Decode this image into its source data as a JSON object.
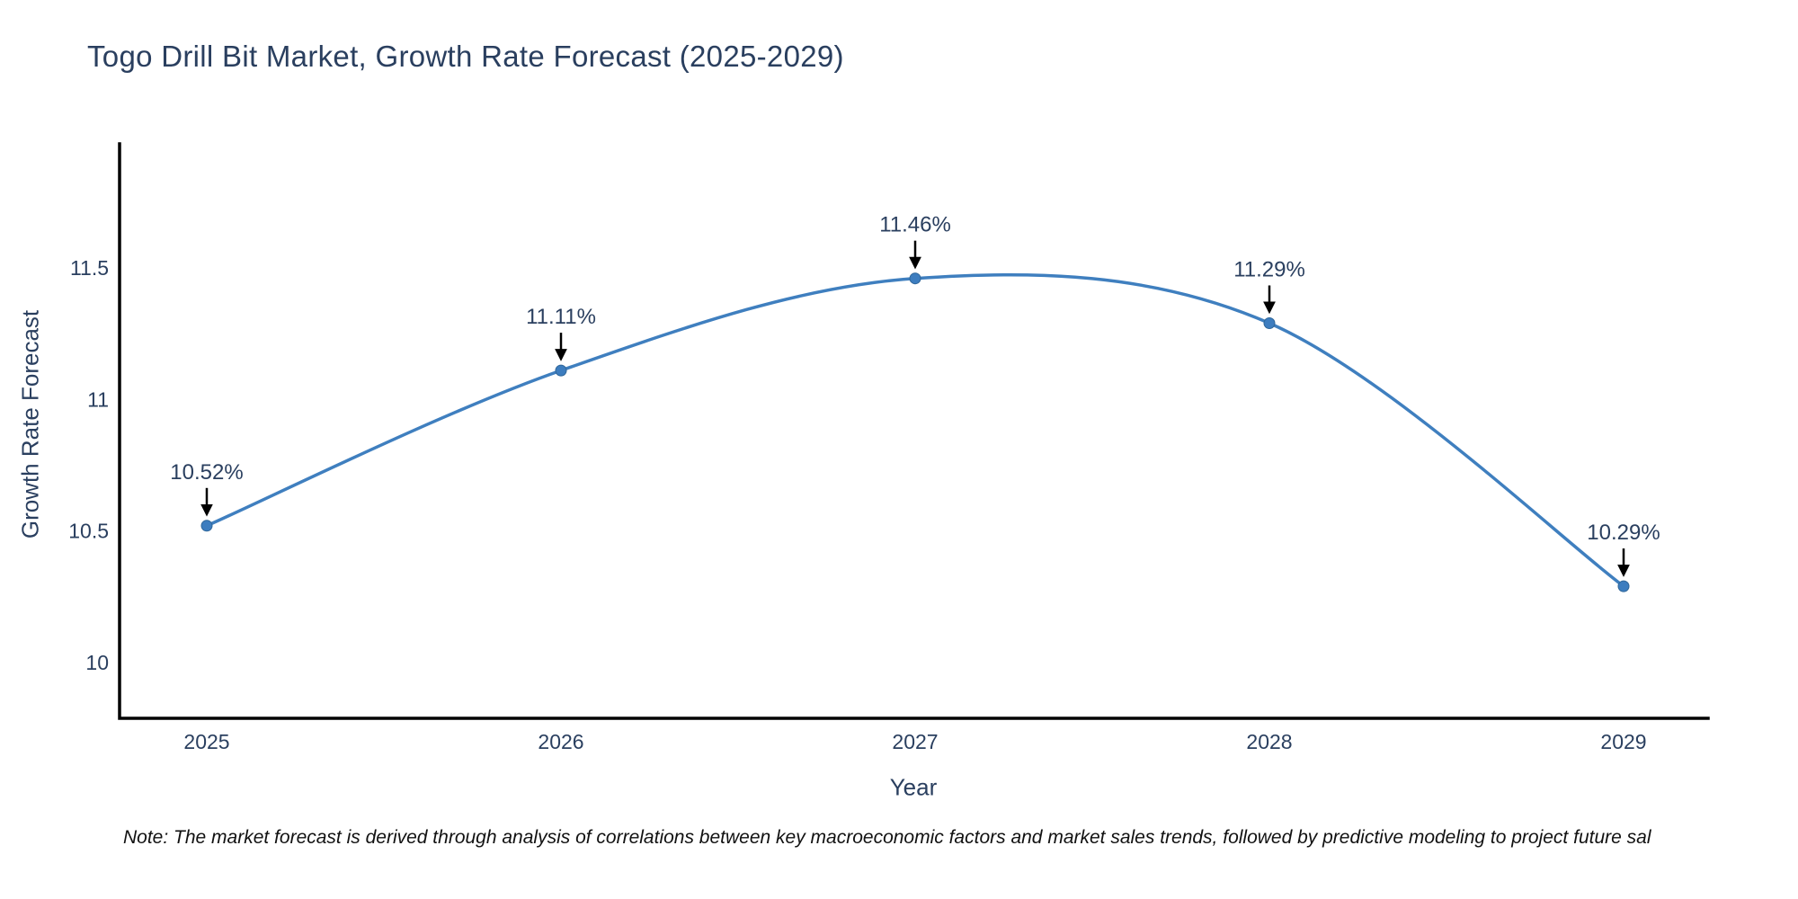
{
  "title": "Togo Drill Bit Market, Growth Rate Forecast (2025-2029)",
  "footnote": "Note: The market forecast is derived through analysis of correlations between key macroeconomic factors and market sales trends, followed by predictive modeling to project future sal",
  "chart_data": {
    "type": "line",
    "title": "Togo Drill Bit Market, Growth Rate Forecast (2025-2029)",
    "xlabel": "Year",
    "ylabel": "Growth Rate Forecast",
    "categories": [
      "2025",
      "2026",
      "2027",
      "2028",
      "2029"
    ],
    "values": [
      10.52,
      11.11,
      11.46,
      11.29,
      10.29
    ],
    "point_labels": [
      "10.52%",
      "11.11%",
      "11.29%",
      "10.29%"
    ],
    "annotations": [
      "10.52%",
      "11.11%",
      "11.46%",
      "11.29%",
      "10.29%"
    ],
    "yticks": [
      11.5,
      11.0,
      10.5,
      10.0
    ],
    "ytick_labels": [
      "11.5",
      "11",
      "10.5",
      "10"
    ],
    "ylim": [
      9.79,
      11.97
    ],
    "grid": false,
    "legend": false,
    "line_shape": "spline",
    "colors": {
      "line": "#3f7fbf",
      "marker_fill": "#3d7dbf",
      "marker_stroke": "#2f6699",
      "annotation_text": "#2a3f5f",
      "annotation_arrow": "#000000",
      "axis_spine": "#000000",
      "tick_label": "#2a3f5f",
      "title_text": "#2a3f5f",
      "background": "#ffffff"
    }
  }
}
